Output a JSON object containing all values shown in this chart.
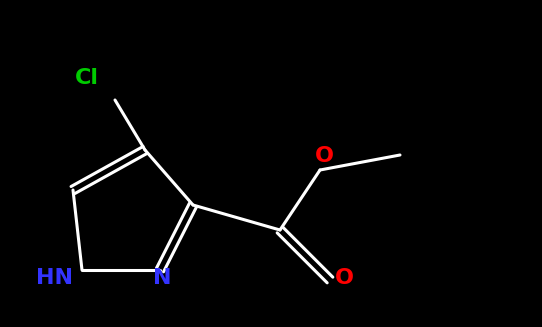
{
  "background_color": "#000000",
  "bond_color": "#ffffff",
  "bond_width": 2.2,
  "figsize": [
    5.42,
    3.27
  ],
  "dpi": 100,
  "atoms": {
    "HN": {
      "label": "HN",
      "color": "#3333ff"
    },
    "N": {
      "label": "N",
      "color": "#3333ff"
    },
    "O1": {
      "label": "O",
      "color": "#ff0000"
    },
    "O2": {
      "label": "O",
      "color": "#ff0000"
    },
    "Cl": {
      "label": "Cl",
      "color": "#00cc00"
    }
  },
  "font_size": 16
}
